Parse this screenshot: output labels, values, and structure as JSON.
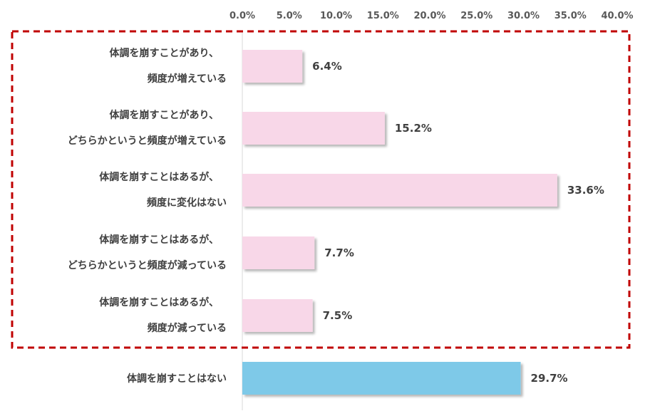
{
  "chart_data": {
    "type": "bar",
    "orientation": "horizontal",
    "xlim": [
      0,
      40
    ],
    "tick_labels": [
      "0.0%",
      "5.0%",
      "10.0%",
      "15.0%",
      "20.0%",
      "25.0%",
      "30.0%",
      "35.0%",
      "40.0%"
    ],
    "categories": [
      [
        "体調を崩すことがあり、",
        "頻度が増えている"
      ],
      [
        "体調を崩すことがあり、",
        "どちらかというと頻度が増えている"
      ],
      [
        "体調を崩すことはあるが、",
        "頻度に変化はない"
      ],
      [
        "体調を崩すことはあるが、",
        "どちらかというと頻度が減っている"
      ],
      [
        "体調を崩すことはあるが、",
        "頻度が減っている"
      ],
      [
        "体調を崩すことはない"
      ]
    ],
    "values": [
      6.4,
      15.2,
      33.6,
      7.7,
      7.5,
      29.7
    ],
    "value_labels": [
      "6.4%",
      "15.2%",
      "33.6%",
      "7.7%",
      "7.5%",
      "29.7%"
    ],
    "bar_colors": [
      "#f8d7e8",
      "#f8d7e8",
      "#f8d7e8",
      "#f8d7e8",
      "#f8d7e8",
      "#7ec9e8"
    ],
    "highlight_box": {
      "color": "#c00000",
      "style": "dashed",
      "covers_categories": [
        0,
        4
      ]
    },
    "grid": false,
    "legend": "none"
  }
}
